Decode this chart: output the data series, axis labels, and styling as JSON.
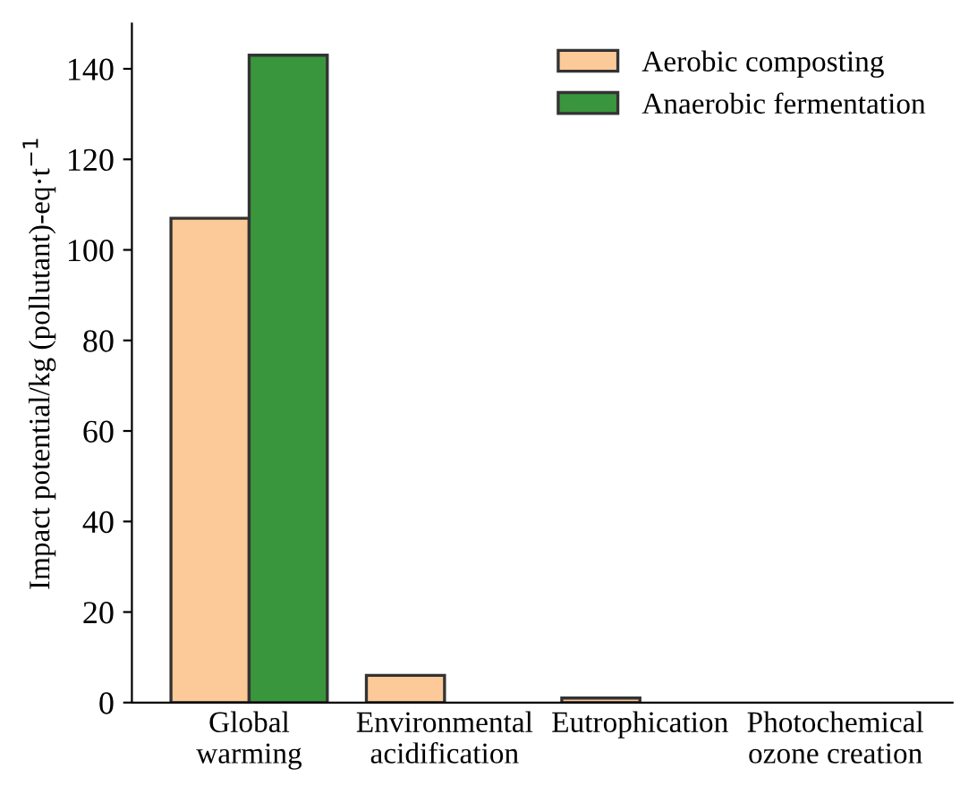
{
  "chart_data": {
    "type": "bar",
    "ylabel": "Impact potential/kg (pollutant)-eq·t$^{−1}$",
    "categories": [
      "Global\nwarming",
      "Environmental\nacidification",
      "Eutrophication",
      "Photochemical\nozone creation"
    ],
    "series": [
      {
        "name": "Aerobic composting",
        "color": "#fcc998",
        "values": [
          107,
          6,
          1,
          null
        ]
      },
      {
        "name": "Anaerobic fermentation",
        "color": "#3a963c",
        "values": [
          143,
          null,
          null,
          null
        ]
      }
    ],
    "ylim": [
      0,
      150
    ],
    "yticks": [
      0,
      20,
      40,
      60,
      80,
      100,
      120,
      140
    ],
    "legend": "top right",
    "grid": false
  }
}
